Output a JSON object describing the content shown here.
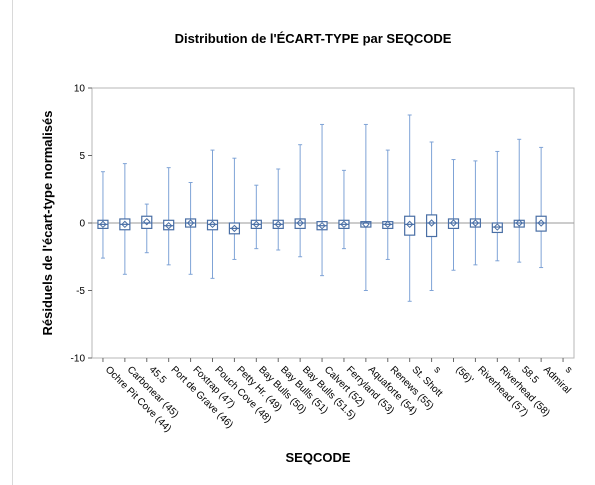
{
  "chart_data": {
    "type": "box",
    "title": "Distribution de l'ÉCART-TYPE par SEQCODE",
    "xlabel": "SEQCODE",
    "ylabel": "Résiduels de l'écart-type normalisés",
    "ylim": [
      -10,
      10
    ],
    "yticks": [
      -10,
      -5,
      0,
      5,
      10
    ],
    "reference_line": 0,
    "grid": false,
    "legend": "none",
    "colors": {
      "box_stroke": "#4a6fa5",
      "box_fill": "#ffffff",
      "whisker": "#7fa3d6",
      "mean_marker": "#4a6fa5",
      "reference_line": "#9a9a9a",
      "plot_border": "#b7b7b7",
      "axis": "#666666"
    },
    "categories": [
      "Ochre Pit Cove (44)",
      "Carbonear (45)",
      "45.5",
      "Port de Grave (46)",
      "Foxtrap (47)",
      "Pouch Cove (48)",
      "Petty Hr. (49)",
      "Bay Bulls (50)",
      "Bay Bulls (51)",
      "Bay Bulls (51.5)",
      "Calvert (52)",
      "Ferryland (53)",
      "Aquaforte (54)",
      "Renews (55)",
      "St. Shott",
      "s",
      "(56)'",
      "Riverhead (57)",
      "Riverhead (58)",
      "58.5",
      "Admiral",
      "s"
    ],
    "boxes": [
      {
        "min": -2.6,
        "q1": -0.4,
        "median": -0.1,
        "q3": 0.2,
        "max": 3.8,
        "mean": -0.1
      },
      {
        "min": -3.8,
        "q1": -0.5,
        "median": -0.1,
        "q3": 0.3,
        "max": 4.4,
        "mean": -0.1
      },
      {
        "min": -2.2,
        "q1": -0.4,
        "median": 0.0,
        "q3": 0.5,
        "max": 1.4,
        "mean": 0.1
      },
      {
        "min": -3.1,
        "q1": -0.5,
        "median": -0.2,
        "q3": 0.2,
        "max": 4.1,
        "mean": -0.2
      },
      {
        "min": -3.8,
        "q1": -0.3,
        "median": 0.0,
        "q3": 0.3,
        "max": 3.0,
        "mean": 0.0
      },
      {
        "min": -4.1,
        "q1": -0.5,
        "median": -0.1,
        "q3": 0.2,
        "max": 5.4,
        "mean": -0.1
      },
      {
        "min": -2.7,
        "q1": -0.8,
        "median": -0.4,
        "q3": 0.0,
        "max": 4.8,
        "mean": -0.4
      },
      {
        "min": -1.9,
        "q1": -0.4,
        "median": -0.1,
        "q3": 0.2,
        "max": 2.8,
        "mean": -0.1
      },
      {
        "min": -2.0,
        "q1": -0.4,
        "median": -0.1,
        "q3": 0.2,
        "max": 4.0,
        "mean": -0.1
      },
      {
        "min": -2.5,
        "q1": -0.4,
        "median": 0.0,
        "q3": 0.3,
        "max": 5.8,
        "mean": 0.0
      },
      {
        "min": -3.9,
        "q1": -0.5,
        "median": -0.2,
        "q3": 0.1,
        "max": 7.3,
        "mean": -0.2
      },
      {
        "min": -1.9,
        "q1": -0.4,
        "median": -0.1,
        "q3": 0.2,
        "max": 3.9,
        "mean": -0.1
      },
      {
        "min": -5.0,
        "q1": -0.3,
        "median": 0.0,
        "q3": 0.1,
        "max": 7.3,
        "mean": -0.1
      },
      {
        "min": -2.7,
        "q1": -0.4,
        "median": -0.1,
        "q3": 0.1,
        "max": 5.4,
        "mean": -0.1
      },
      {
        "min": -5.8,
        "q1": -0.9,
        "median": -0.1,
        "q3": 0.5,
        "max": 8.0,
        "mean": -0.1
      },
      {
        "min": -5.0,
        "q1": -1.0,
        "median": 0.0,
        "q3": 0.6,
        "max": 6.0,
        "mean": 0.0
      },
      {
        "min": -3.5,
        "q1": -0.4,
        "median": 0.0,
        "q3": 0.3,
        "max": 4.7,
        "mean": 0.0
      },
      {
        "min": -3.1,
        "q1": -0.3,
        "median": 0.0,
        "q3": 0.3,
        "max": 4.6,
        "mean": 0.0
      },
      {
        "min": -2.8,
        "q1": -0.7,
        "median": -0.3,
        "q3": 0.0,
        "max": 5.3,
        "mean": -0.3
      },
      {
        "min": -2.9,
        "q1": -0.3,
        "median": 0.0,
        "q3": 0.2,
        "max": 6.2,
        "mean": 0.0
      },
      {
        "min": -3.3,
        "q1": -0.6,
        "median": 0.0,
        "q3": 0.5,
        "max": 5.6,
        "mean": 0.0
      },
      null
    ]
  }
}
